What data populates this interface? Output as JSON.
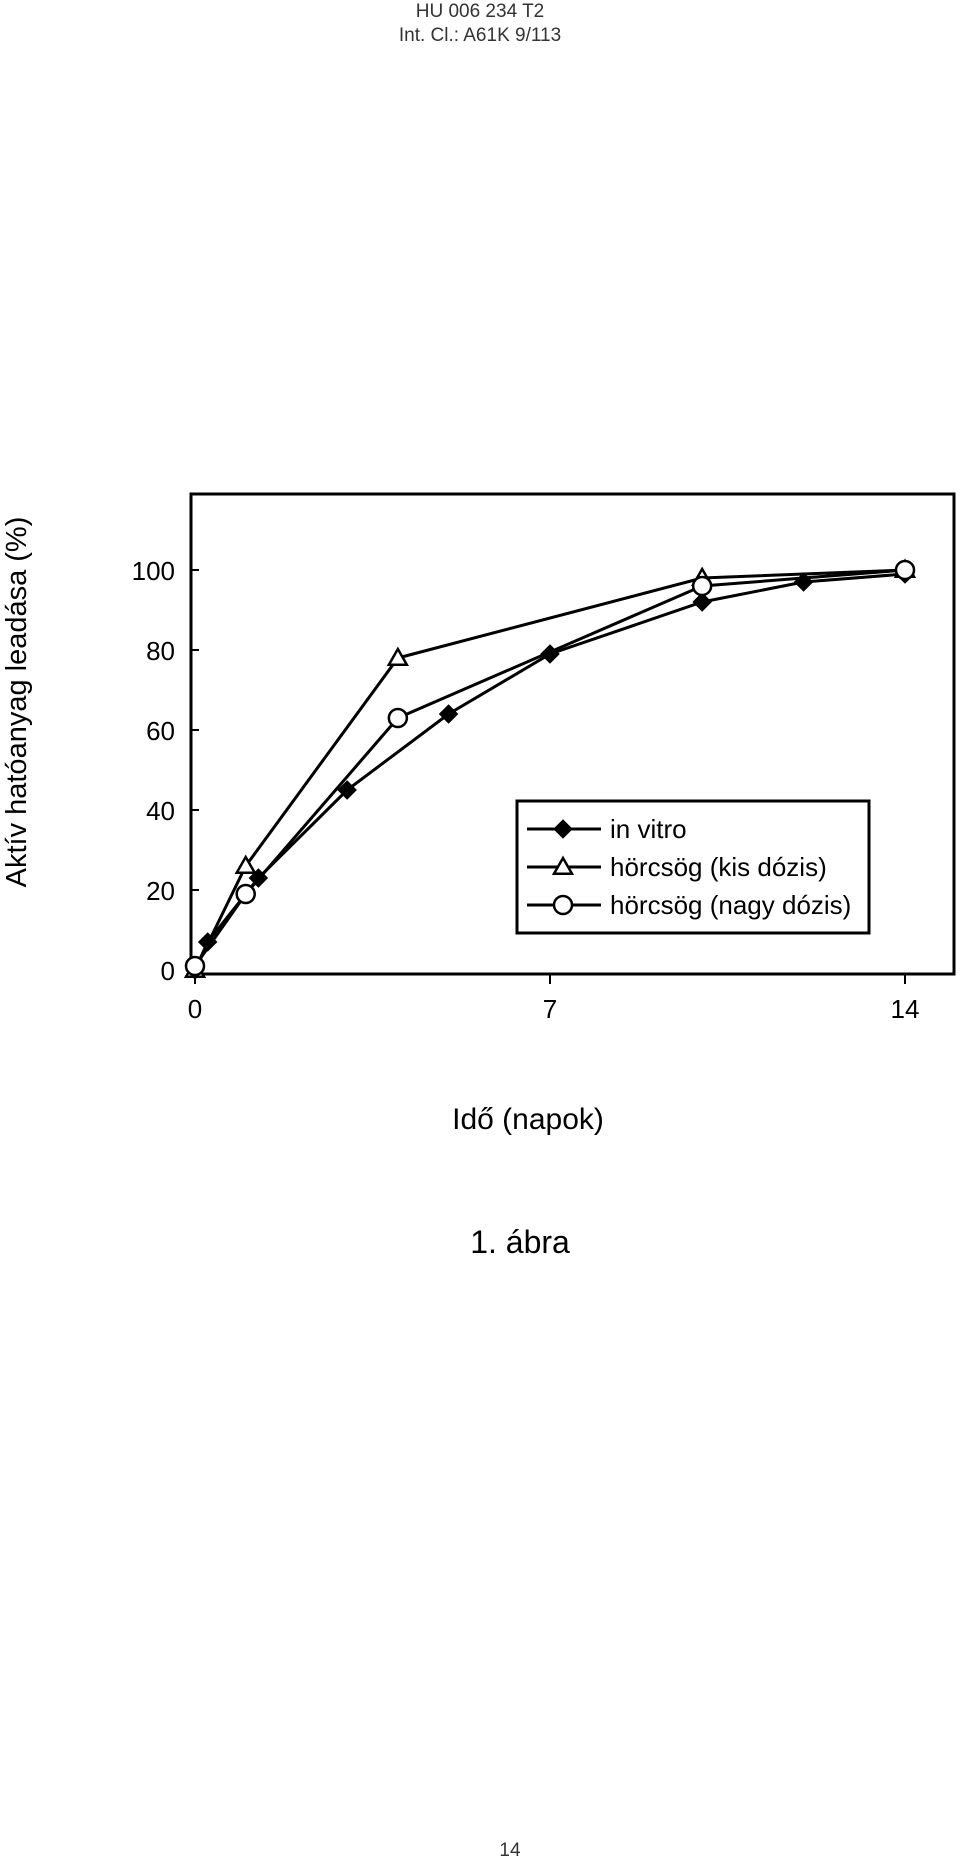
{
  "header": {
    "doc_number": "HU 006 234 T2",
    "classification": "Int. Cl.: A61K 9/113"
  },
  "figure_caption": "1. ábra",
  "page_number": "14",
  "chart_data": {
    "type": "line",
    "title": "",
    "xlabel": "Idő (napok)",
    "ylabel": "Aktív hatóanyag leadása (%)",
    "xlim": [
      0,
      14
    ],
    "ylim": [
      0,
      100
    ],
    "x_ticks": [
      0,
      7,
      14
    ],
    "y_ticks": [
      0,
      20,
      40,
      60,
      80,
      100
    ],
    "grid": false,
    "legend": "bottom-right",
    "series": [
      {
        "name": "in vitro",
        "marker": "diamond-filled",
        "x": [
          0,
          0.25,
          1.25,
          3,
          5,
          7,
          10,
          12,
          14
        ],
        "y": [
          0,
          7,
          23,
          45,
          64,
          79,
          92,
          97,
          99
        ]
      },
      {
        "name": "hörcsög (kis dózis)",
        "marker": "triangle-open",
        "x": [
          0,
          1,
          4,
          10,
          14
        ],
        "y": [
          0,
          26,
          78,
          98,
          100
        ]
      },
      {
        "name": "hörcsög (nagy dózis)",
        "marker": "circle-open",
        "x": [
          0,
          1,
          4,
          10,
          14
        ],
        "y": [
          1,
          19,
          63,
          96,
          100
        ]
      }
    ]
  }
}
